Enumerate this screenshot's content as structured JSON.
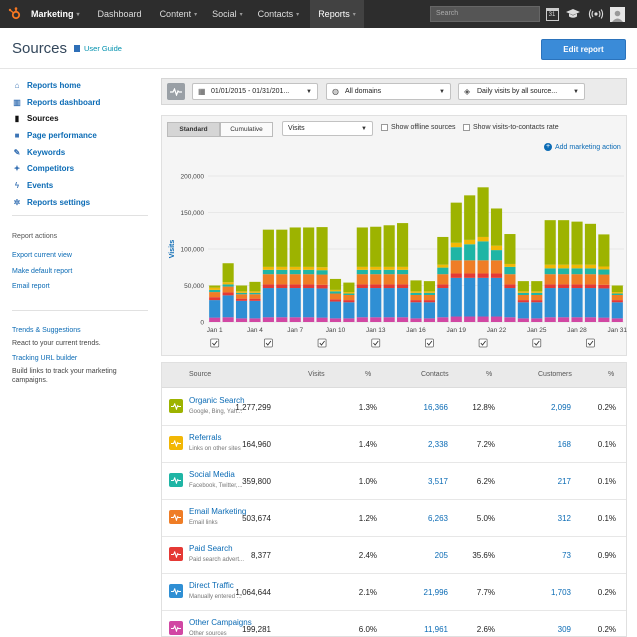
{
  "topnav": {
    "items": [
      {
        "label": "Marketing",
        "caret": "▾"
      },
      {
        "label": "Dashboard",
        "caret": ""
      },
      {
        "label": "Content",
        "caret": "▾"
      },
      {
        "label": "Social",
        "caret": "▾"
      },
      {
        "label": "Contacts",
        "caret": "▾"
      },
      {
        "label": "Reports",
        "caret": "▾"
      }
    ],
    "search_placeholder": "Search",
    "calendar_day": "31",
    "colors": {
      "bar": "#2d2d2d",
      "logo": "#f57722"
    }
  },
  "page": {
    "title": "Sources",
    "user_guide": "User Guide",
    "edit_button": "Edit report"
  },
  "sidebar": {
    "items": [
      {
        "label": "Reports home",
        "icon": "home-icon",
        "glyph": "⌂"
      },
      {
        "label": "Reports dashboard",
        "icon": "dashboard-icon",
        "glyph": "▥"
      },
      {
        "label": "Sources",
        "icon": "bar-chart-icon",
        "glyph": "▮"
      },
      {
        "label": "Page performance",
        "icon": "page-icon",
        "glyph": "■"
      },
      {
        "label": "Keywords",
        "icon": "key-icon",
        "glyph": "✎"
      },
      {
        "label": "Competitors",
        "icon": "compass-icon",
        "glyph": "✦"
      },
      {
        "label": "Events",
        "icon": "lightning-icon",
        "glyph": "ϟ"
      },
      {
        "label": "Reports settings",
        "icon": "gear-icon",
        "glyph": "✲"
      }
    ],
    "report_actions_heading": "Report actions",
    "actions": [
      "Export current view",
      "Make default report",
      "Email report"
    ],
    "trends_link": "Trends & Suggestions",
    "trends_text": "React to your current trends.",
    "url_builder_link": "Tracking URL builder",
    "url_builder_text": "Build links to track your marketing campaigns."
  },
  "filters": {
    "date_range": "01/01/2015 - 01/31/201...",
    "domains": "All domains",
    "view": "Daily visits by all source..."
  },
  "chart_controls": {
    "standard": "Standard",
    "cumulative": "Cumulative",
    "metric": "Visits",
    "show_offline": "Show offline sources",
    "show_v2c": "Show visits-to-contacts rate",
    "add_action": "Add marketing action"
  },
  "chart_data": {
    "type": "bar",
    "stacked": true,
    "ylabel": "Visits",
    "ylim": [
      0,
      200000
    ],
    "yticks": [
      "0",
      "50,000",
      "100,000",
      "150,000",
      "200,000"
    ],
    "xtick_labels": [
      "Jan 1",
      "Jan 4",
      "Jan 7",
      "Jan 10",
      "Jan 13",
      "Jan 16",
      "Jan 19",
      "Jan 22",
      "Jan 25",
      "Jan 28",
      "Jan 31"
    ],
    "xtick_days": [
      1,
      4,
      7,
      10,
      13,
      16,
      19,
      22,
      25,
      28,
      31
    ],
    "marker_days": [
      1,
      5,
      9,
      13,
      17,
      21,
      25,
      29
    ],
    "categories": [
      "1",
      "2",
      "3",
      "4",
      "5",
      "6",
      "7",
      "8",
      "9",
      "10",
      "11",
      "12",
      "13",
      "14",
      "15",
      "16",
      "17",
      "18",
      "19",
      "20",
      "21",
      "22",
      "23",
      "24",
      "25",
      "26",
      "27",
      "28",
      "29",
      "30",
      "31"
    ],
    "series": [
      {
        "name": "Other Campaigns",
        "color": "#d147a3",
        "values": [
          6000,
          6500,
          5000,
          5000,
          6500,
          6500,
          6500,
          6500,
          6000,
          5000,
          5000,
          6500,
          6500,
          6500,
          6500,
          5000,
          5000,
          6500,
          7500,
          7500,
          7500,
          7500,
          6500,
          5000,
          5000,
          6500,
          6500,
          6500,
          6500,
          6000,
          5000
        ]
      },
      {
        "name": "Direct Traffic",
        "color": "#2f8fd4",
        "values": [
          24000,
          30000,
          24000,
          24000,
          40000,
          40000,
          40000,
          40000,
          40000,
          23000,
          22000,
          40000,
          40000,
          40000,
          40000,
          22000,
          22000,
          40000,
          53000,
          53000,
          53000,
          53000,
          40000,
          22000,
          22000,
          40000,
          40000,
          40000,
          40000,
          40000,
          22000
        ]
      },
      {
        "name": "Paid Search",
        "color": "#e53935",
        "values": [
          4000,
          4000,
          3000,
          3000,
          5000,
          5000,
          5000,
          5000,
          5000,
          3000,
          3000,
          5000,
          5000,
          5000,
          5000,
          3000,
          3000,
          5000,
          6000,
          6000,
          6000,
          6000,
          5000,
          3000,
          3000,
          5000,
          5000,
          5000,
          5000,
          5000,
          3000
        ]
      },
      {
        "name": "Email Marketing",
        "color": "#ef7d26",
        "values": [
          7000,
          8000,
          6000,
          6000,
          14000,
          14000,
          14000,
          14000,
          14000,
          8000,
          7000,
          14000,
          14000,
          14000,
          14000,
          7000,
          7000,
          14000,
          18000,
          18000,
          18000,
          18000,
          14000,
          7000,
          7000,
          14000,
          14000,
          14000,
          14000,
          14000,
          7000
        ]
      },
      {
        "name": "Social Media",
        "color": "#1fb5a5",
        "values": [
          3000,
          3000,
          2000,
          2000,
          6000,
          6000,
          6000,
          6000,
          6000,
          3000,
          2000,
          6000,
          6000,
          6000,
          6000,
          3000,
          3000,
          9000,
          18000,
          22000,
          26000,
          14000,
          10000,
          3000,
          3000,
          8000,
          8000,
          8000,
          8000,
          7000,
          2000
        ]
      },
      {
        "name": "Referrals",
        "color": "#f2b705",
        "values": [
          3000,
          3000,
          2000,
          2000,
          4000,
          4000,
          4000,
          4000,
          4000,
          2000,
          2000,
          4000,
          4000,
          4000,
          4000,
          2000,
          2000,
          4000,
          6000,
          6000,
          6000,
          6000,
          4000,
          2000,
          2000,
          5000,
          5000,
          5000,
          5000,
          4000,
          2000
        ]
      },
      {
        "name": "Organic Search",
        "color": "#9db300",
        "values": [
          3000,
          26000,
          8000,
          13000,
          51000,
          51000,
          54000,
          54000,
          55000,
          15000,
          13000,
          54000,
          55000,
          57000,
          60000,
          15000,
          14000,
          38000,
          55000,
          61000,
          68000,
          51000,
          41000,
          14000,
          14000,
          61000,
          61000,
          59000,
          56000,
          44000,
          9000
        ]
      }
    ]
  },
  "table": {
    "headers": {
      "source": "Source",
      "visits": "Visits",
      "pct1": "%",
      "contacts": "Contacts",
      "pct2": "%",
      "customers": "Customers",
      "pct3": "%"
    },
    "rows": [
      {
        "name": "Organic Search",
        "sub": "Google, Bing, Yah...",
        "visits": "1,277,299",
        "pct1": "1.3%",
        "contacts": "16,366",
        "pct2": "12.8%",
        "customers": "2,099",
        "pct3": "0.2%",
        "color": "#9db300"
      },
      {
        "name": "Referrals",
        "sub": "Links on other sites",
        "visits": "164,960",
        "pct1": "1.4%",
        "contacts": "2,338",
        "pct2": "7.2%",
        "customers": "168",
        "pct3": "0.1%",
        "color": "#f2b705"
      },
      {
        "name": "Social Media",
        "sub": "Facebook, Twitter,...",
        "visits": "359,800",
        "pct1": "1.0%",
        "contacts": "3,517",
        "pct2": "6.2%",
        "customers": "217",
        "pct3": "0.1%",
        "color": "#1fb5a5"
      },
      {
        "name": "Email Marketing",
        "sub": "Email links",
        "visits": "503,674",
        "pct1": "1.2%",
        "contacts": "6,263",
        "pct2": "5.0%",
        "customers": "312",
        "pct3": "0.1%",
        "color": "#ef7d26"
      },
      {
        "name": "Paid Search",
        "sub": "Paid search advert...",
        "visits": "8,377",
        "pct1": "2.4%",
        "contacts": "205",
        "pct2": "35.6%",
        "customers": "73",
        "pct3": "0.9%",
        "color": "#e53935"
      },
      {
        "name": "Direct Traffic",
        "sub": "Manually entered ...",
        "visits": "1,064,644",
        "pct1": "2.1%",
        "contacts": "21,996",
        "pct2": "7.7%",
        "customers": "1,703",
        "pct3": "0.2%",
        "color": "#2f8fd4"
      },
      {
        "name": "Other Campaigns",
        "sub": "Other sources",
        "visits": "199,281",
        "pct1": "6.0%",
        "contacts": "11,961",
        "pct2": "2.6%",
        "customers": "309",
        "pct3": "0.2%",
        "color": "#d147a3"
      }
    ]
  }
}
